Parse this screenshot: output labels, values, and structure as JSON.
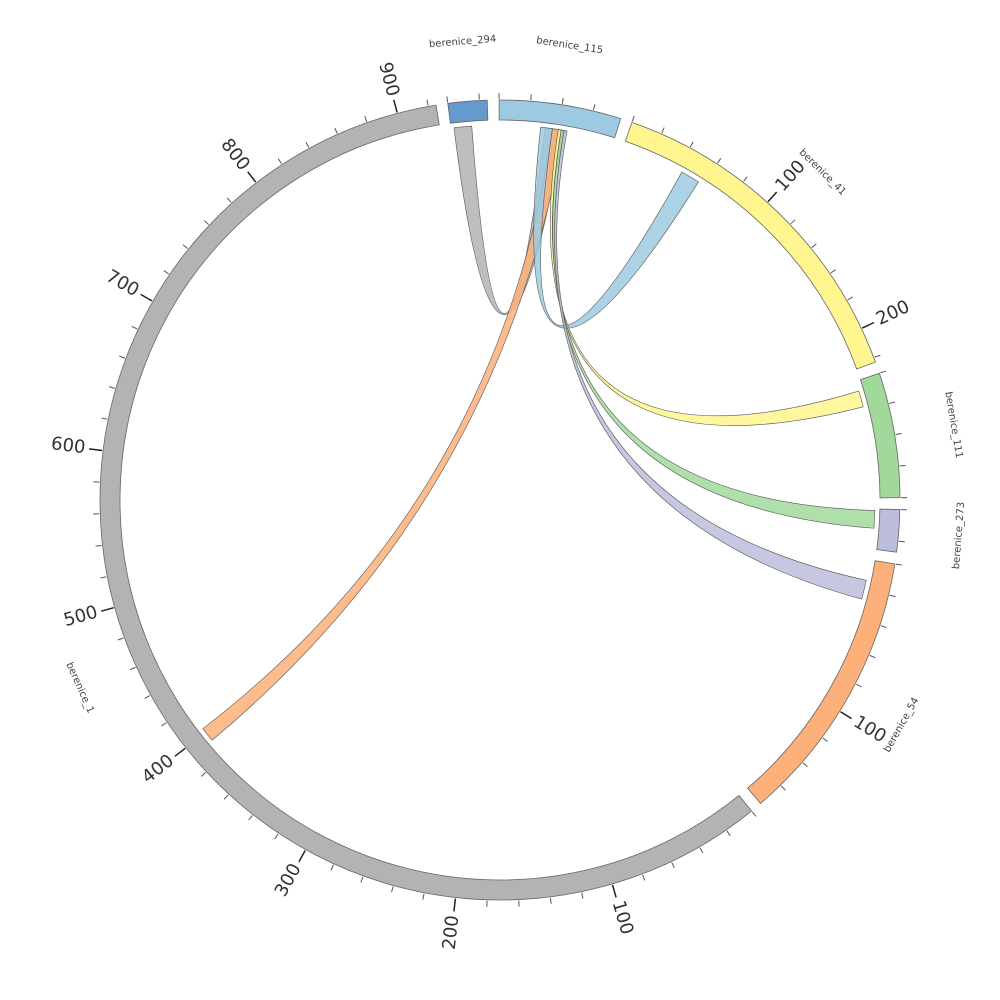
{
  "chart_data": {
    "type": "chord",
    "minor_tick_step": 20,
    "segments": [
      {
        "name": "berenice_294",
        "length": 25,
        "color": "#6699cc",
        "ticks": []
      },
      {
        "name": "berenice_115",
        "length": 78,
        "color": "#9ecae1",
        "ticks": []
      },
      {
        "name": "berenice_41",
        "length": 223,
        "color": "#fff68f",
        "ticks": [
          100,
          200
        ]
      },
      {
        "name": "berenice_111",
        "length": 80,
        "color": "#a1d99b",
        "ticks": []
      },
      {
        "name": "berenice_273",
        "length": 27,
        "color": "#bcbddc",
        "ticks": []
      },
      {
        "name": "berenice_54",
        "length": 177,
        "color": "#fdb07a",
        "ticks": [
          100
        ]
      },
      {
        "name": "berenice_1",
        "length": 925,
        "color": "#b3b3b3",
        "ticks": [
          100,
          200,
          300,
          400,
          500,
          600,
          700,
          800,
          900
        ]
      }
    ],
    "links": [
      {
        "color": "#b3b3b3",
        "source": {
          "segment": "berenice_294",
          "start": 2,
          "end": 14
        },
        "target": {
          "segment": "berenice_115",
          "start": 31,
          "end": 43
        }
      },
      {
        "color": "#fdb07a",
        "source": {
          "segment": "berenice_1",
          "start": 393,
          "end": 403
        },
        "target": {
          "segment": "berenice_115",
          "start": 36,
          "end": 44
        }
      },
      {
        "color": "#9ecae1",
        "source": {
          "segment": "berenice_41",
          "start": 43,
          "end": 56
        },
        "target": {
          "segment": "berenice_115",
          "start": 28,
          "end": 36
        }
      },
      {
        "color": "#fff68f",
        "source": {
          "segment": "berenice_111",
          "start": 7,
          "end": 18
        },
        "target": {
          "segment": "berenice_115",
          "start": 40,
          "end": 42
        }
      },
      {
        "color": "#a1d99b",
        "source": {
          "segment": "berenice_273",
          "start": 1,
          "end": 13
        },
        "target": {
          "segment": "berenice_115",
          "start": 42,
          "end": 44
        }
      },
      {
        "color": "#bcbddc",
        "source": {
          "segment": "berenice_54",
          "start": 14,
          "end": 27
        },
        "target": {
          "segment": "berenice_115",
          "start": 44,
          "end": 46
        }
      }
    ]
  }
}
